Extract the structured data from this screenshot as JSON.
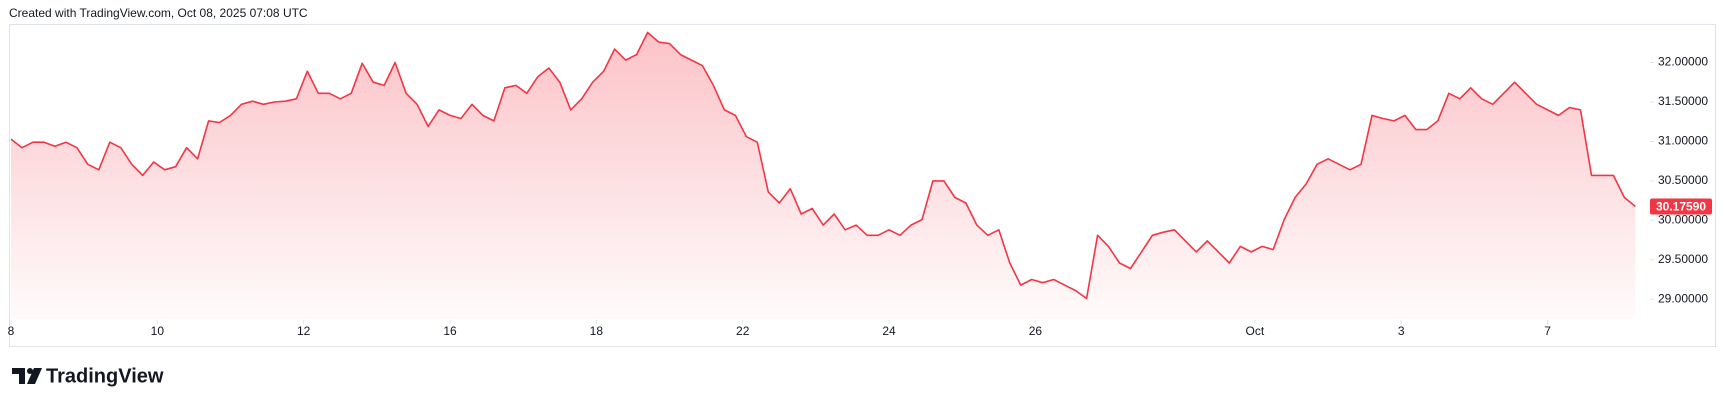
{
  "header": "Created with TradingView.com, Oct 08, 2025 07:08 UTC",
  "logo": "TradingView",
  "chart_data": {
    "type": "area",
    "color": "#f23645",
    "x": [
      0,
      0.15,
      0.3,
      0.45,
      0.6,
      0.75,
      0.9,
      1.05,
      1.2,
      1.35,
      1.5,
      1.65,
      1.8,
      1.95,
      2.1,
      2.25,
      2.4,
      2.55,
      2.7,
      2.85,
      3,
      3.15,
      3.3,
      3.45,
      3.6,
      3.75,
      3.9,
      4.05,
      4.2,
      4.35,
      4.5,
      4.65,
      4.8,
      4.95,
      5.1,
      5.25,
      5.4,
      5.55,
      5.7,
      5.85,
      6,
      6.15,
      6.3,
      6.45,
      6.6,
      6.75,
      6.9,
      7.05,
      7.2,
      7.35,
      7.5,
      7.65,
      7.8,
      7.95,
      8.1,
      8.25,
      8.4,
      8.55,
      8.7,
      8.85,
      9,
      9.15,
      9.3,
      9.45,
      9.6,
      9.75,
      9.9,
      10.05,
      10.2,
      10.35,
      10.5,
      10.65,
      10.8,
      10.95,
      11.1,
      11.25,
      11.4,
      11.55,
      11.7,
      11.85,
      12,
      12.15,
      12.3,
      12.45,
      12.6,
      12.75,
      12.9,
      13.05,
      13.2,
      13.35,
      13.5,
      13.65,
      13.8,
      13.95,
      14.1,
      14.25,
      14.4,
      14.55,
      14.7,
      14.85,
      15,
      15.15,
      15.3,
      15.45,
      15.6,
      15.75,
      15.9,
      16.05,
      16.2,
      16.35,
      16.5,
      16.65,
      16.8,
      16.95,
      17.1,
      17.25,
      17.4,
      17.55,
      17.7,
      17.85,
      18,
      18.15,
      18.3,
      18.45,
      18.6,
      18.75,
      18.9,
      19.05,
      19.2,
      19.35,
      19.5,
      19.65,
      19.8,
      19.95,
      20.1,
      20.25,
      20.4,
      20.55,
      20.7,
      20.85,
      21,
      21.15,
      21.3,
      21.45,
      21.6,
      21.75,
      21.9,
      22.05,
      22.2
    ],
    "values": [
      31.03,
      30.92,
      30.99,
      30.99,
      30.94,
      30.99,
      30.92,
      30.71,
      30.64,
      30.99,
      30.92,
      30.71,
      30.57,
      30.74,
      30.64,
      30.68,
      30.92,
      30.78,
      31.26,
      31.24,
      31.33,
      31.47,
      31.51,
      31.47,
      31.5,
      31.51,
      31.54,
      31.89,
      31.61,
      31.61,
      31.54,
      31.61,
      31.99,
      31.75,
      31.71,
      32.0,
      31.61,
      31.47,
      31.19,
      31.4,
      31.33,
      31.29,
      31.47,
      31.33,
      31.26,
      31.68,
      31.71,
      31.61,
      31.82,
      31.93,
      31.75,
      31.4,
      31.54,
      31.75,
      31.89,
      32.17,
      32.03,
      32.1,
      32.38,
      32.26,
      32.24,
      32.1,
      32.03,
      31.96,
      31.71,
      31.4,
      31.33,
      31.06,
      30.99,
      30.36,
      30.22,
      30.4,
      30.08,
      30.15,
      29.94,
      30.08,
      29.88,
      29.94,
      29.81,
      29.81,
      29.88,
      29.81,
      29.94,
      30.01,
      30.5,
      30.5,
      30.29,
      30.22,
      29.94,
      29.81,
      29.88,
      29.46,
      29.18,
      29.25,
      29.21,
      29.25,
      29.18,
      29.11,
      29.01,
      29.81,
      29.67,
      29.46,
      29.39,
      29.6,
      29.81,
      29.85,
      29.88,
      29.74,
      29.6,
      29.74,
      29.6,
      29.46,
      29.67,
      29.6,
      29.67,
      29.63,
      30.01,
      30.29,
      30.46,
      30.71,
      30.78,
      30.71,
      30.64,
      30.71,
      31.33,
      31.29,
      31.26,
      31.33,
      31.15,
      31.15,
      31.26,
      31.61,
      31.54,
      31.68,
      31.54,
      31.47,
      31.61,
      31.75,
      31.61,
      31.47,
      31.4,
      31.33,
      31.43,
      31.4,
      30.57,
      30.57,
      30.57,
      30.29,
      30.1759
    ],
    "last_price": {
      "value": 30.1759,
      "label": "30.17590"
    },
    "xlim": [
      0,
      22.4
    ],
    "ylim": [
      28.75,
      32.45
    ],
    "xticks": [
      {
        "value": 0,
        "label": "8"
      },
      {
        "value": 2,
        "label": "10"
      },
      {
        "value": 4,
        "label": "12"
      },
      {
        "value": 6,
        "label": "16"
      },
      {
        "value": 8,
        "label": "18"
      },
      {
        "value": 10,
        "label": "22"
      },
      {
        "value": 12,
        "label": "24"
      },
      {
        "value": 14,
        "label": "26"
      },
      {
        "value": 17,
        "label": "Oct"
      },
      {
        "value": 19,
        "label": "3"
      },
      {
        "value": 21,
        "label": "7"
      }
    ],
    "yticks": [
      {
        "value": 29,
        "label": "29.00000"
      },
      {
        "value": 29.5,
        "label": "29.50000"
      },
      {
        "value": 30,
        "label": "30.00000"
      },
      {
        "value": 30.5,
        "label": "30.50000"
      },
      {
        "value": 31,
        "label": "31.00000"
      },
      {
        "value": 31.5,
        "label": "31.50000"
      },
      {
        "value": 32,
        "label": "32.00000"
      }
    ]
  }
}
